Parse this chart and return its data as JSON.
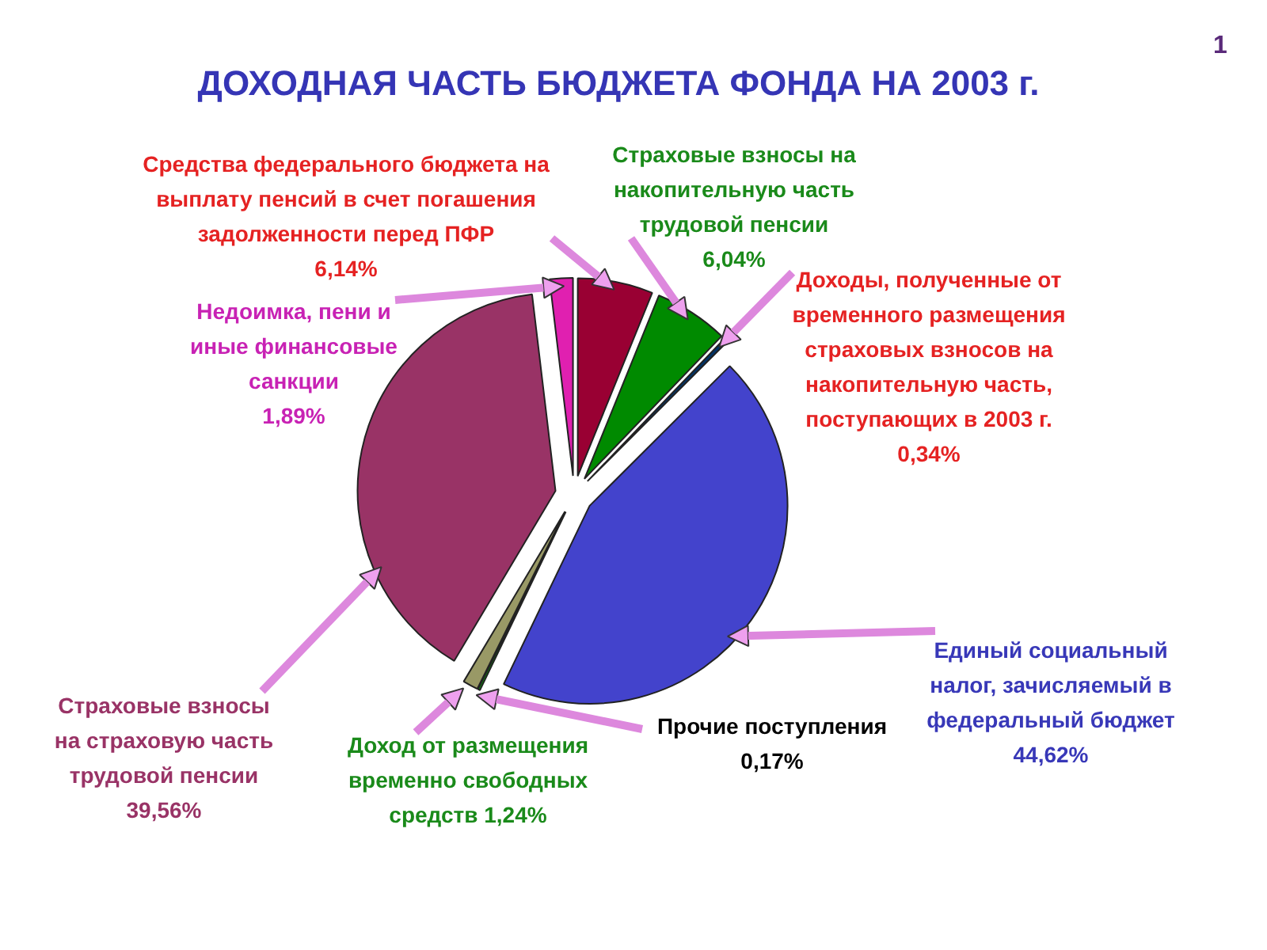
{
  "chart_data": {
    "type": "pie",
    "title": "ДОХОДНАЯ ЧАСТЬ БЮДЖЕТА ФОНДА НА 2003 г.",
    "categories": [
      "Средства федерального бюджета на выплату пенсий в счет погашения задолженности перед ПФР",
      "Страховые взносы на накопительную часть трудовой пенсии",
      "Доходы, полученные от временного размещения страховых взносов на накопительную часть, поступающих в 2003 г.",
      "Единый социальный налог, зачисляемый в федеральный бюджет",
      "Прочие поступления",
      "Доход от размещения временно свободных средств",
      "Страховые взносы на страховую часть трудовой пенсии",
      "Недоимка, пени и иные финансовые санкции"
    ],
    "values": [
      6.14,
      6.04,
      0.34,
      44.62,
      0.17,
      1.24,
      39.56,
      1.89
    ],
    "colors": [
      "#990033",
      "#008a00",
      "#003366",
      "#4343cc",
      "#00a000",
      "#999966",
      "#993366",
      "#e020b0"
    ],
    "value_labels": [
      "6,14%",
      "6,04%",
      "0,34%",
      "44,62%",
      "0,17%",
      "1,24%",
      "39,56%",
      "1,89%"
    ],
    "annotations": [
      "1"
    ]
  }
}
